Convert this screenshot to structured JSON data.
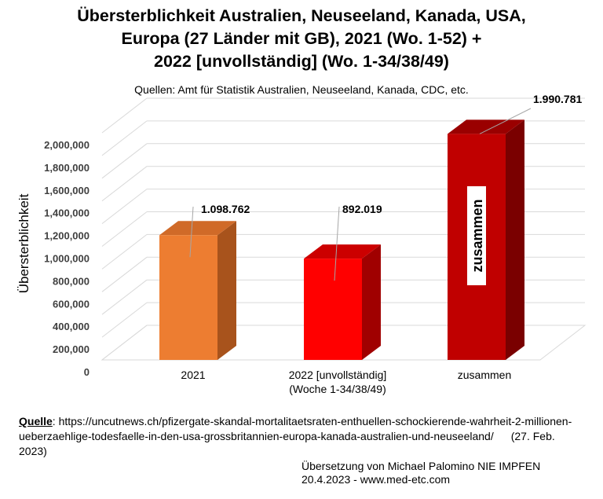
{
  "title_lines": [
    "Übersterblichkeit Australien, Neuseeland, Kanada, USA,",
    "Europa (27 Länder mit GB), 2021 (Wo. 1-52) +",
    "2022 [unvollständig]  (Wo. 1-34/38/49)"
  ],
  "subtitle": "Quellen: Amt für Statistik Australien, Neuseeland, Kanada, CDC, etc.",
  "chart_data": {
    "type": "bar",
    "title": "Übersterblichkeit Australien, Neuseeland, Kanada, USA, Europa (27 Länder mit GB), 2021 (Wo. 1-52) + 2022 [unvollständig]  (Wo. 1-34/38/49)",
    "xlabel": "",
    "ylabel": "Übersterblichkeit",
    "ylim": [
      0,
      2000000
    ],
    "yticks": [
      0,
      200000,
      400000,
      600000,
      800000,
      1000000,
      1200000,
      1400000,
      1600000,
      1800000,
      2000000
    ],
    "ytick_labels": [
      "0",
      "200,000",
      "400,000",
      "600,000",
      "800,000",
      "1,000,000",
      "1,200,000",
      "1,400,000",
      "1,600,000",
      "1,800,000",
      "2,000,000"
    ],
    "categories": [
      [
        "2021"
      ],
      [
        "2022 [unvollständig]",
        "(Woche 1-34/38/49)"
      ],
      [
        "zusammen"
      ]
    ],
    "values": [
      1098762,
      892019,
      1990781
    ],
    "value_labels": [
      "1.098.762",
      "892.019",
      "1.990.781"
    ],
    "colors": [
      {
        "front": "#ED7D31",
        "side": "#A8531C",
        "top": "#D06A28"
      },
      {
        "front": "#FF0000",
        "side": "#A00000",
        "top": "#CC0000"
      },
      {
        "front": "#C00000",
        "side": "#7A0000",
        "top": "#9A0000"
      }
    ],
    "bar_inner_label": "zusammen",
    "grid": true
  },
  "source": {
    "label": "Quelle",
    "text": ": https://uncutnews.ch/pfizergate-skandal-mortalitaetsraten-enthuellen-schockierende-wahrheit-2-millionen-ueberzaehlige-todesfaelle-in-den-usa-grossbritannien-europa-kanada-australien-und-neuseeland/",
    "date": "(27. Feb. 2023)"
  },
  "credit": {
    "line1": "Übersetzung von Michael Palomino NIE IMPFEN",
    "line2": "20.4.2023 - www.med-etc.com"
  }
}
